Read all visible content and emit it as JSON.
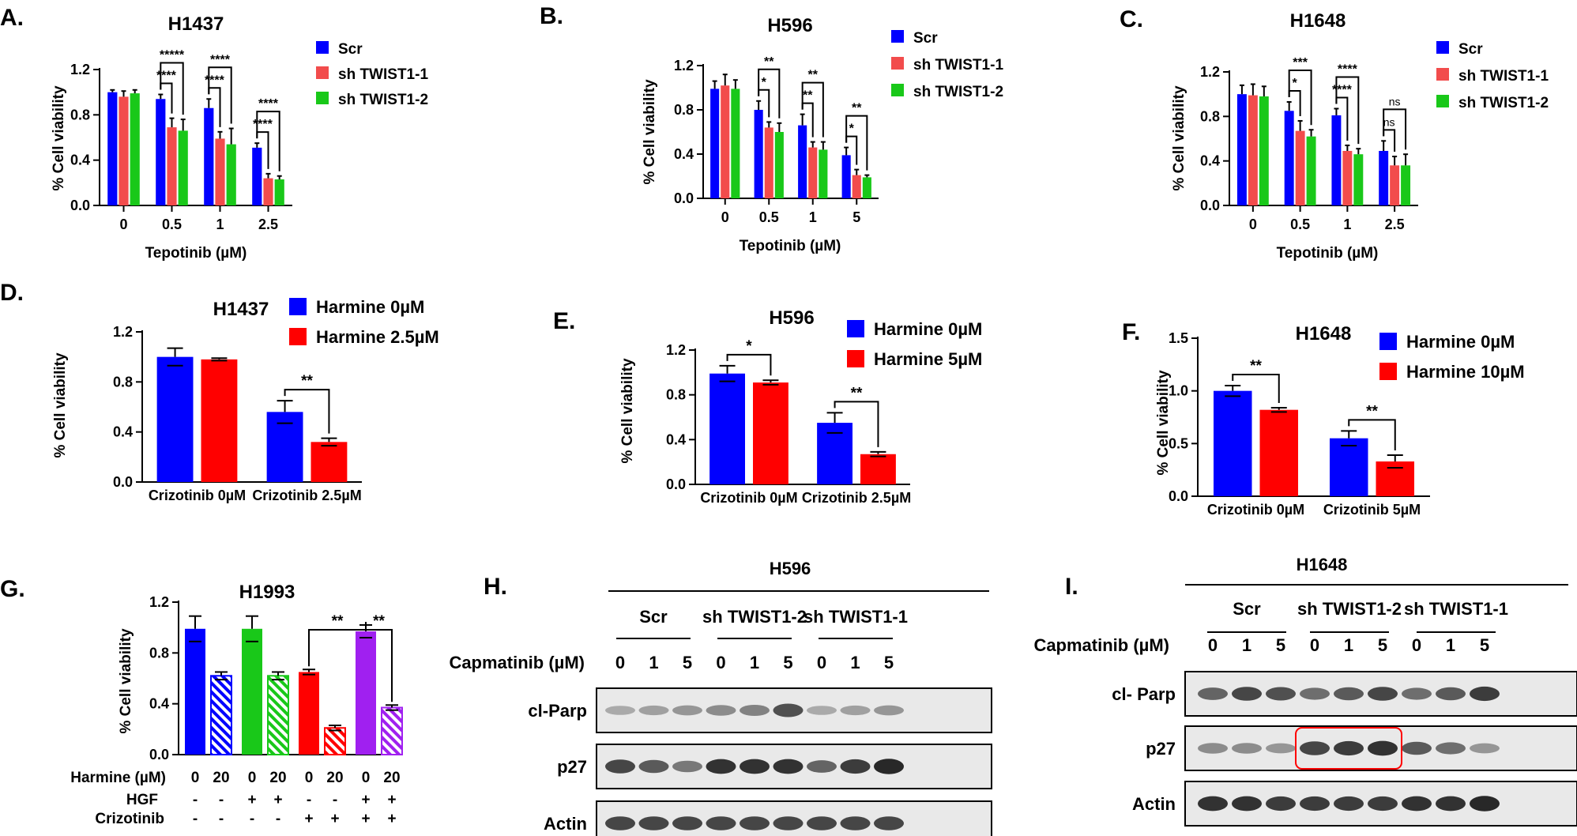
{
  "chart_data": [
    {
      "id": "A",
      "panel": "A.",
      "type": "bar",
      "title": "H1437",
      "xlabel": "Tepotinib (µM)",
      "ylabel": "% Cell viability",
      "categories": [
        "0",
        "0.5",
        "1",
        "2.5"
      ],
      "ylim": [
        0,
        1.2
      ],
      "yticks": [
        "0.0",
        "0.4",
        "0.8",
        "1.2"
      ],
      "legend": [
        "Scr",
        "sh TWIST1-1",
        "sh TWIST1-2"
      ],
      "colors": [
        "#0000ff",
        "#f24c4c",
        "#19c819"
      ],
      "series": [
        {
          "name": "Scr",
          "values": [
            1.0,
            0.94,
            0.86,
            0.51
          ],
          "errors": [
            0.02,
            0.04,
            0.08,
            0.04
          ]
        },
        {
          "name": "sh TWIST1-1",
          "values": [
            0.96,
            0.69,
            0.59,
            0.24
          ],
          "errors": [
            0.05,
            0.08,
            0.06,
            0.04
          ]
        },
        {
          "name": "sh TWIST1-2",
          "values": [
            0.99,
            0.66,
            0.54,
            0.23
          ],
          "errors": [
            0.03,
            0.1,
            0.14,
            0.03
          ]
        }
      ],
      "significance": [
        {
          "cat": 1,
          "from": 0,
          "to": 1,
          "label": "****"
        },
        {
          "cat": 1,
          "from": 0,
          "to": 2,
          "label": "*****"
        },
        {
          "cat": 2,
          "from": 0,
          "to": 1,
          "label": "****"
        },
        {
          "cat": 2,
          "from": 0,
          "to": 2,
          "label": "****"
        },
        {
          "cat": 3,
          "from": 0,
          "to": 1,
          "label": "****"
        },
        {
          "cat": 3,
          "from": 0,
          "to": 2,
          "label": "****"
        }
      ]
    },
    {
      "id": "B",
      "panel": "B.",
      "type": "bar",
      "title": "H596",
      "xlabel": "Tepotinib (µM)",
      "ylabel": "% Cell viability",
      "categories": [
        "0",
        "0.5",
        "1",
        "5"
      ],
      "ylim": [
        0,
        1.2
      ],
      "yticks": [
        "0.0",
        "0.4",
        "0.8",
        "1.2"
      ],
      "legend": [
        "Scr",
        "sh TWIST1-1",
        "sh TWIST1-2"
      ],
      "colors": [
        "#0000ff",
        "#f24c4c",
        "#19c819"
      ],
      "series": [
        {
          "name": "Scr",
          "values": [
            0.99,
            0.8,
            0.66,
            0.39
          ],
          "errors": [
            0.07,
            0.08,
            0.1,
            0.07
          ]
        },
        {
          "name": "sh TWIST1-1",
          "values": [
            1.02,
            0.64,
            0.46,
            0.21
          ],
          "errors": [
            0.1,
            0.05,
            0.05,
            0.05
          ]
        },
        {
          "name": "sh TWIST1-2",
          "values": [
            0.99,
            0.6,
            0.44,
            0.19
          ],
          "errors": [
            0.08,
            0.08,
            0.07,
            0.02
          ]
        }
      ],
      "significance": [
        {
          "cat": 1,
          "from": 0,
          "to": 1,
          "label": "*"
        },
        {
          "cat": 1,
          "from": 0,
          "to": 2,
          "label": "**"
        },
        {
          "cat": 2,
          "from": 0,
          "to": 1,
          "label": "**"
        },
        {
          "cat": 2,
          "from": 0,
          "to": 2,
          "label": "**"
        },
        {
          "cat": 3,
          "from": 0,
          "to": 1,
          "label": "*"
        },
        {
          "cat": 3,
          "from": 0,
          "to": 2,
          "label": "**"
        }
      ]
    },
    {
      "id": "C",
      "panel": "C.",
      "type": "bar",
      "title": "H1648",
      "xlabel": "Tepotinib (µM)",
      "ylabel": "% Cell viability",
      "categories": [
        "0",
        "0.5",
        "1",
        "2.5"
      ],
      "ylim": [
        0,
        1.2
      ],
      "yticks": [
        "0.0",
        "0.4",
        "0.8",
        "1.2"
      ],
      "legend": [
        "Scr",
        "sh TWIST1-1",
        "sh TWIST1-2"
      ],
      "colors": [
        "#0000ff",
        "#f24c4c",
        "#19c819"
      ],
      "series": [
        {
          "name": "Scr",
          "values": [
            1.0,
            0.85,
            0.81,
            0.49
          ],
          "errors": [
            0.08,
            0.08,
            0.06,
            0.09
          ]
        },
        {
          "name": "sh TWIST1-1",
          "values": [
            0.99,
            0.67,
            0.49,
            0.36
          ],
          "errors": [
            0.1,
            0.09,
            0.05,
            0.08
          ]
        },
        {
          "name": "sh TWIST1-2",
          "values": [
            0.98,
            0.62,
            0.46,
            0.36
          ],
          "errors": [
            0.09,
            0.06,
            0.05,
            0.1
          ]
        }
      ],
      "significance": [
        {
          "cat": 1,
          "from": 0,
          "to": 1,
          "label": "*"
        },
        {
          "cat": 1,
          "from": 0,
          "to": 2,
          "label": "***"
        },
        {
          "cat": 2,
          "from": 0,
          "to": 1,
          "label": "****"
        },
        {
          "cat": 2,
          "from": 0,
          "to": 2,
          "label": "****"
        },
        {
          "cat": 3,
          "from": 0,
          "to": 1,
          "label": "ns"
        },
        {
          "cat": 3,
          "from": 0,
          "to": 2,
          "label": "ns"
        }
      ]
    },
    {
      "id": "D",
      "panel": "D.",
      "type": "bar",
      "title": "H1437",
      "ylabel": "% Cell viability",
      "categories": [
        "Crizotinib 0µM",
        "Crizotinib 2.5µM"
      ],
      "ylim": [
        0,
        1.2
      ],
      "yticks": [
        "0.0",
        "0.4",
        "0.8",
        "1.2"
      ],
      "legend": [
        "Harmine 0µM",
        "Harmine 2.5µM"
      ],
      "colors": [
        "#0000ff",
        "#ff0000"
      ],
      "series": [
        {
          "name": "Harmine 0µM",
          "values": [
            1.0,
            0.56
          ],
          "errors": [
            0.07,
            0.09
          ]
        },
        {
          "name": "Harmine 2.5µM",
          "values": [
            0.98,
            0.32
          ],
          "errors": [
            0.01,
            0.03
          ]
        }
      ],
      "significance": [
        {
          "cat": 1,
          "from": 0,
          "to": 1,
          "label": "**"
        }
      ]
    },
    {
      "id": "E",
      "panel": "E.",
      "type": "bar",
      "title": "H596",
      "ylabel": "% Cell viability",
      "categories": [
        "Crizotinib 0µM",
        "Crizotinib 2.5µM"
      ],
      "ylim": [
        0,
        1.2
      ],
      "yticks": [
        "0.0",
        "0.4",
        "0.8",
        "1.2"
      ],
      "legend": [
        "Harmine 0µM",
        "Harmine 5µM"
      ],
      "colors": [
        "#0000ff",
        "#ff0000"
      ],
      "series": [
        {
          "name": "Harmine 0µM",
          "values": [
            0.99,
            0.55
          ],
          "errors": [
            0.07,
            0.09
          ]
        },
        {
          "name": "Harmine 5µM",
          "values": [
            0.91,
            0.27
          ],
          "errors": [
            0.02,
            0.02
          ]
        }
      ],
      "significance": [
        {
          "cat": 0,
          "from": 0,
          "to": 1,
          "label": "*"
        },
        {
          "cat": 1,
          "from": 0,
          "to": 1,
          "label": "**"
        }
      ]
    },
    {
      "id": "F",
      "panel": "F.",
      "type": "bar",
      "title": "H1648",
      "ylabel": "% Cell viability",
      "categories": [
        "Crizotinib 0µM",
        "Crizotinib 5µM"
      ],
      "ylim": [
        0,
        1.5
      ],
      "yticks": [
        "0.0",
        "0.5",
        "1.0",
        "1.5"
      ],
      "legend": [
        "Harmine 0µM",
        "Harmine 10µM"
      ],
      "colors": [
        "#0000ff",
        "#ff0000"
      ],
      "series": [
        {
          "name": "Harmine 0µM",
          "values": [
            1.0,
            0.55
          ],
          "errors": [
            0.05,
            0.07
          ]
        },
        {
          "name": "Harmine 10µM",
          "values": [
            0.82,
            0.33
          ],
          "errors": [
            0.02,
            0.06
          ]
        }
      ],
      "significance": [
        {
          "cat": 0,
          "from": 0,
          "to": 1,
          "label": "**"
        },
        {
          "cat": 1,
          "from": 0,
          "to": 1,
          "label": "**"
        }
      ]
    },
    {
      "id": "G",
      "panel": "G.",
      "type": "bar",
      "title": "H1993",
      "ylabel": "% Cell viability",
      "ylim": [
        0,
        1.2
      ],
      "yticks": [
        "0.0",
        "0.4",
        "0.8",
        "1.2"
      ],
      "row_labels": [
        "Harmine (µM)",
        "HGF",
        "Crizotinib"
      ],
      "bars": [
        {
          "color": "#0000ff",
          "hatched": false,
          "value": 0.99,
          "error": 0.1,
          "harmine": "0",
          "hgf": "-",
          "crizotinib": "-"
        },
        {
          "color": "#0000ff",
          "hatched": true,
          "value": 0.62,
          "error": 0.03,
          "harmine": "20",
          "hgf": "-",
          "crizotinib": "-"
        },
        {
          "color": "#19c819",
          "hatched": false,
          "value": 0.99,
          "error": 0.1,
          "harmine": "0",
          "hgf": "+",
          "crizotinib": "-"
        },
        {
          "color": "#19c819",
          "hatched": true,
          "value": 0.62,
          "error": 0.03,
          "harmine": "20",
          "hgf": "+",
          "crizotinib": "-"
        },
        {
          "color": "#ff0000",
          "hatched": false,
          "value": 0.65,
          "error": 0.02,
          "harmine": "0",
          "hgf": "-",
          "crizotinib": "+"
        },
        {
          "color": "#ff0000",
          "hatched": true,
          "value": 0.21,
          "error": 0.02,
          "harmine": "20",
          "hgf": "-",
          "crizotinib": "+"
        },
        {
          "color": "#a020f0",
          "hatched": false,
          "value": 0.97,
          "error": 0.05,
          "harmine": "0",
          "hgf": "+",
          "crizotinib": "+"
        },
        {
          "color": "#a020f0",
          "hatched": true,
          "value": 0.37,
          "error": 0.02,
          "harmine": "20",
          "hgf": "+",
          "crizotinib": "+"
        }
      ],
      "significance": [
        {
          "from": 4,
          "to": 6,
          "label": "**"
        },
        {
          "from": 6,
          "to": 7,
          "label": "**"
        }
      ]
    }
  ],
  "blots": {
    "H": {
      "panel": "H.",
      "cell_line": "H596",
      "groups": [
        "Scr",
        "sh TWIST1-2",
        "sh TWIST1-1"
      ],
      "treatment_label": "Capmatinib (µM)",
      "doses": [
        "0",
        "1",
        "5",
        "0",
        "1",
        "5",
        "0",
        "1",
        "5"
      ],
      "rows": [
        {
          "label": "cl-Parp",
          "intensity": [
            0.3,
            0.35,
            0.4,
            0.45,
            0.5,
            0.75,
            0.3,
            0.35,
            0.4
          ]
        },
        {
          "label": "p27",
          "intensity": [
            0.8,
            0.7,
            0.55,
            0.9,
            0.9,
            0.9,
            0.65,
            0.85,
            0.95
          ]
        },
        {
          "label": "Actin",
          "intensity": [
            0.8,
            0.8,
            0.8,
            0.8,
            0.8,
            0.8,
            0.8,
            0.8,
            0.8
          ]
        }
      ]
    },
    "I": {
      "panel": "I.",
      "cell_line": "H1648",
      "groups": [
        "Scr",
        "sh TWIST1-2",
        "sh TWIST1-1"
      ],
      "treatment_label": "Capmatinib (µM)",
      "doses": [
        "0",
        "1",
        "5",
        "0",
        "1",
        "5",
        "0",
        "1",
        "5"
      ],
      "rows": [
        {
          "label": "cl- Parp",
          "intensity": [
            0.65,
            0.8,
            0.75,
            0.6,
            0.7,
            0.8,
            0.6,
            0.7,
            0.85
          ]
        },
        {
          "label": "p27",
          "intensity": [
            0.45,
            0.45,
            0.4,
            0.8,
            0.85,
            0.9,
            0.7,
            0.6,
            0.4
          ]
        },
        {
          "label": "Actin",
          "intensity": [
            0.9,
            0.9,
            0.85,
            0.85,
            0.85,
            0.85,
            0.9,
            0.9,
            0.95
          ]
        }
      ]
    }
  }
}
